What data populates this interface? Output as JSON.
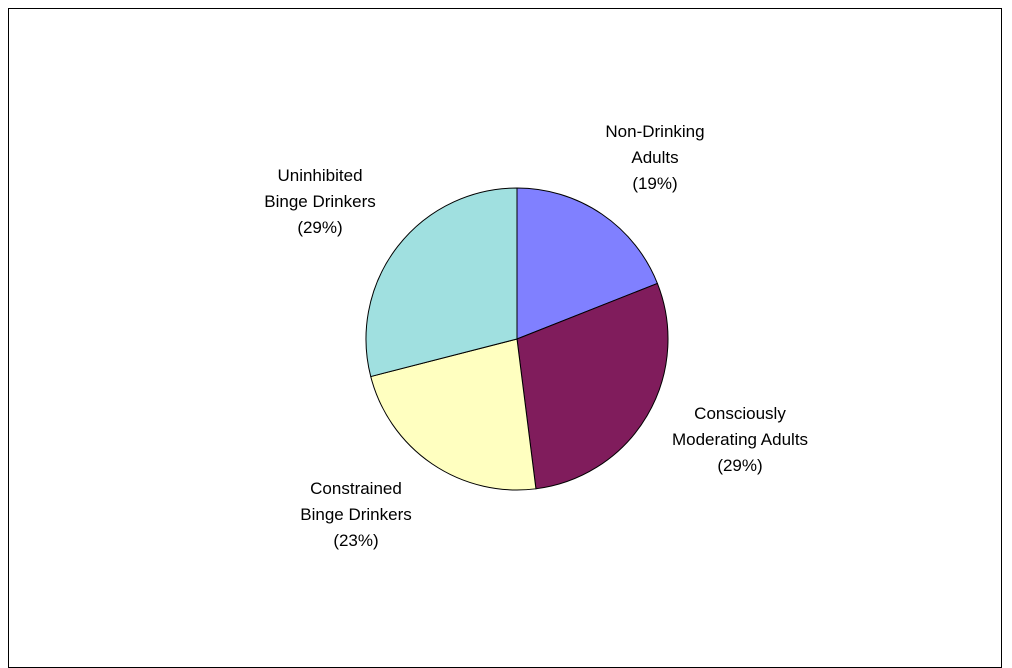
{
  "chart_data": {
    "type": "pie",
    "title": "",
    "legend": "none",
    "start_angle_deg": 0,
    "direction": "clockwise",
    "slices": [
      {
        "label_lines": [
          "Non-Drinking",
          "Adults"
        ],
        "value_text": "(19%)",
        "value": 19,
        "color": "#8080ff"
      },
      {
        "label_lines": [
          "Consciously",
          "Moderating Adults"
        ],
        "value_text": "(29%)",
        "value": 29,
        "color": "#801c5c"
      },
      {
        "label_lines": [
          "Constrained",
          "Binge Drinkers"
        ],
        "value_text": "(23%)",
        "value": 23,
        "color": "#ffffc0"
      },
      {
        "label_lines": [
          "Uninhibited",
          "Binge Drinkers"
        ],
        "value_text": "(29%)",
        "value": 29,
        "color": "#a0e0e0"
      }
    ]
  }
}
